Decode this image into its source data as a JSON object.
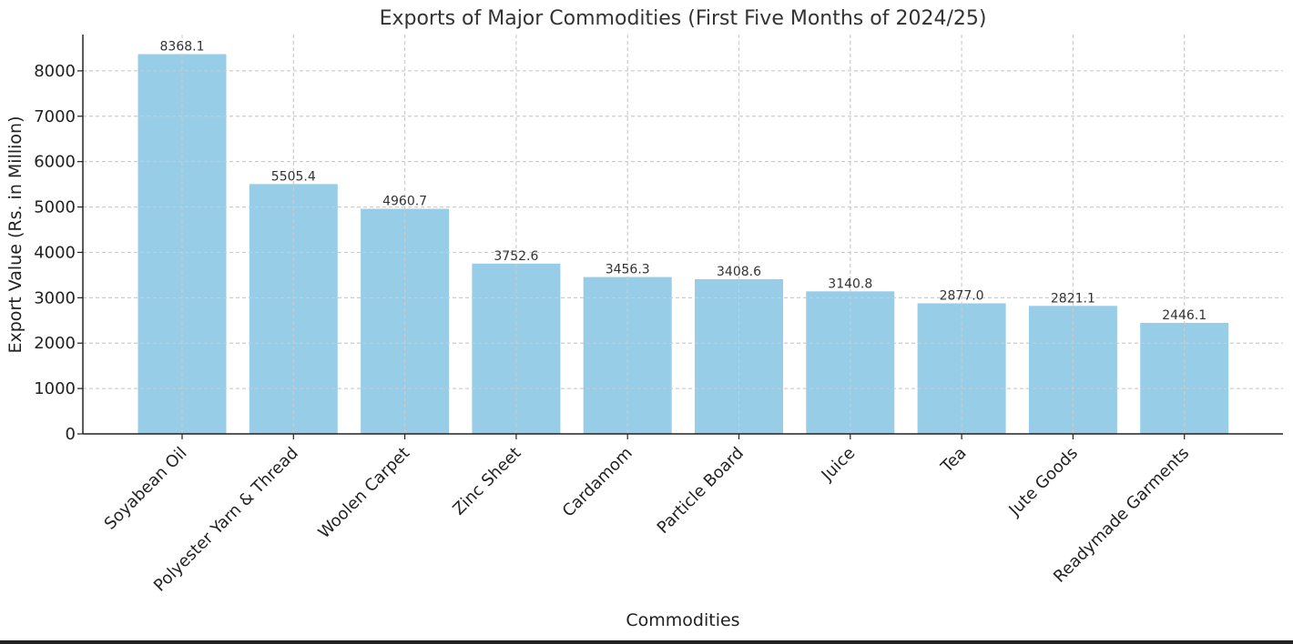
{
  "chart_data": {
    "type": "bar",
    "title": "Exports of Major Commodities (First Five Months of 2024/25)",
    "xlabel": "Commodities",
    "ylabel": "Export Value (Rs. in Million)",
    "categories": [
      "Soyabean Oil",
      "Polyester Yarn & Thread",
      "Woolen Carpet",
      "Zinc Sheet",
      "Cardamom",
      "Particle Board",
      "Juice",
      "Tea",
      "Jute Goods",
      "Readymade Garments"
    ],
    "values": [
      8368.1,
      5505.4,
      4960.7,
      3752.6,
      3456.3,
      3408.6,
      3140.8,
      2877.0,
      2821.1,
      2446.1
    ],
    "value_labels": [
      "8368.1",
      "5505.4",
      "4960.7",
      "3752.6",
      "3456.3",
      "3408.6",
      "3140.8",
      "2877.0",
      "2821.1",
      "2446.1"
    ],
    "ylim": [
      0,
      8800
    ],
    "yticks": [
      0,
      1000,
      2000,
      3000,
      4000,
      5000,
      6000,
      7000,
      8000
    ],
    "grid": true,
    "bar_color": "#98cde8"
  }
}
